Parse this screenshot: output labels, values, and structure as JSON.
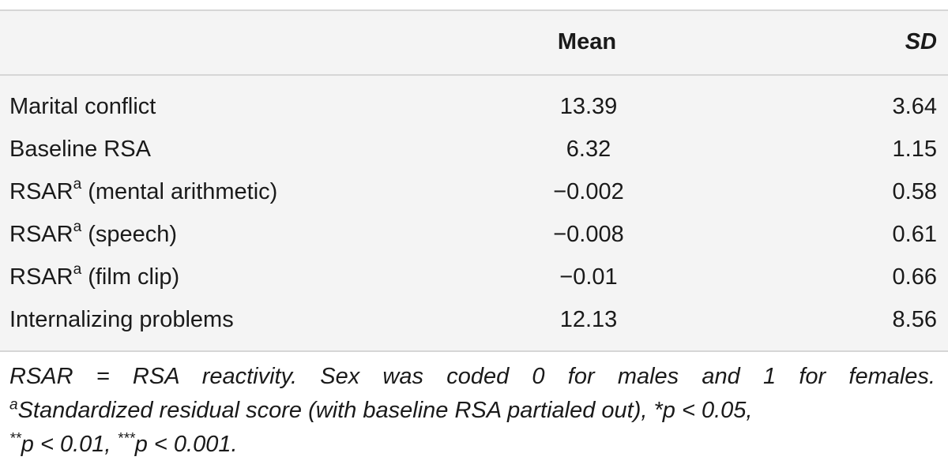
{
  "table": {
    "headers": {
      "label": "",
      "mean": "Mean",
      "sd": "SD"
    },
    "rows": [
      {
        "label": "Marital conflict",
        "sup": "",
        "suffix": "",
        "mean": "13.39",
        "sd": "3.64"
      },
      {
        "label": "Baseline RSA",
        "sup": "",
        "suffix": "",
        "mean": "6.32",
        "sd": "1.15"
      },
      {
        "label": "RSAR",
        "sup": "a",
        "suffix": " (mental arithmetic)",
        "mean": "−0.002",
        "sd": "0.58"
      },
      {
        "label": "RSAR",
        "sup": "a",
        "suffix": " (speech)",
        "mean": "−0.008",
        "sd": "0.61"
      },
      {
        "label": "RSAR",
        "sup": "a",
        "suffix": " (film clip)",
        "mean": "−0.01",
        "sd": "0.66"
      },
      {
        "label": "Internalizing problems",
        "sup": "",
        "suffix": "",
        "mean": "12.13",
        "sd": "8.56"
      }
    ]
  },
  "footnote": {
    "line1": "RSAR = RSA reactivity. Sex was coded 0 for males and 1 for females.",
    "line2_sup": "a",
    "line2_text": "Standardized residual score (with baseline RSA partialed out), *p < 0.05,",
    "line3_sup": "**",
    "line3_text_a": "p < 0.01, ",
    "line3_sup_b": "***",
    "line3_text_b": "p < 0.001."
  },
  "colors": {
    "table_bg": "#f4f4f4",
    "rule": "#d6d6d6",
    "text": "#1a1a1a"
  }
}
